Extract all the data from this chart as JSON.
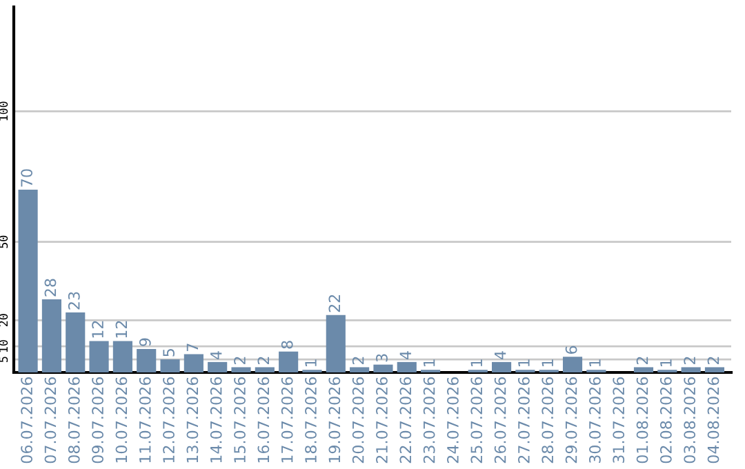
{
  "chart_data": {
    "type": "bar",
    "categories": [
      "06.07.2026",
      "07.07.2026",
      "08.07.2026",
      "09.07.2026",
      "10.07.2026",
      "11.07.2026",
      "12.07.2026",
      "13.07.2026",
      "14.07.2026",
      "15.07.2026",
      "16.07.2026",
      "17.07.2026",
      "18.07.2026",
      "19.07.2026",
      "20.07.2026",
      "21.07.2026",
      "22.07.2026",
      "23.07.2026",
      "24.07.2026",
      "25.07.2026",
      "26.07.2026",
      "27.07.2026",
      "28.07.2026",
      "29.07.2026",
      "30.07.2026",
      "31.07.2026",
      "01.08.2026",
      "02.08.2026",
      "03.08.2026",
      "04.08.2026"
    ],
    "values": [
      70,
      28,
      23,
      12,
      12,
      9,
      5,
      7,
      4,
      2,
      2,
      8,
      1,
      22,
      2,
      3,
      4,
      1,
      null,
      1,
      4,
      1,
      1,
      6,
      1,
      null,
      2,
      1,
      2,
      2
    ],
    "color": "#6b8aaa",
    "ylim": [
      0,
      140
    ],
    "yticks": [
      5,
      10,
      20,
      50,
      100
    ],
    "grid": "y",
    "data_labels": true
  }
}
